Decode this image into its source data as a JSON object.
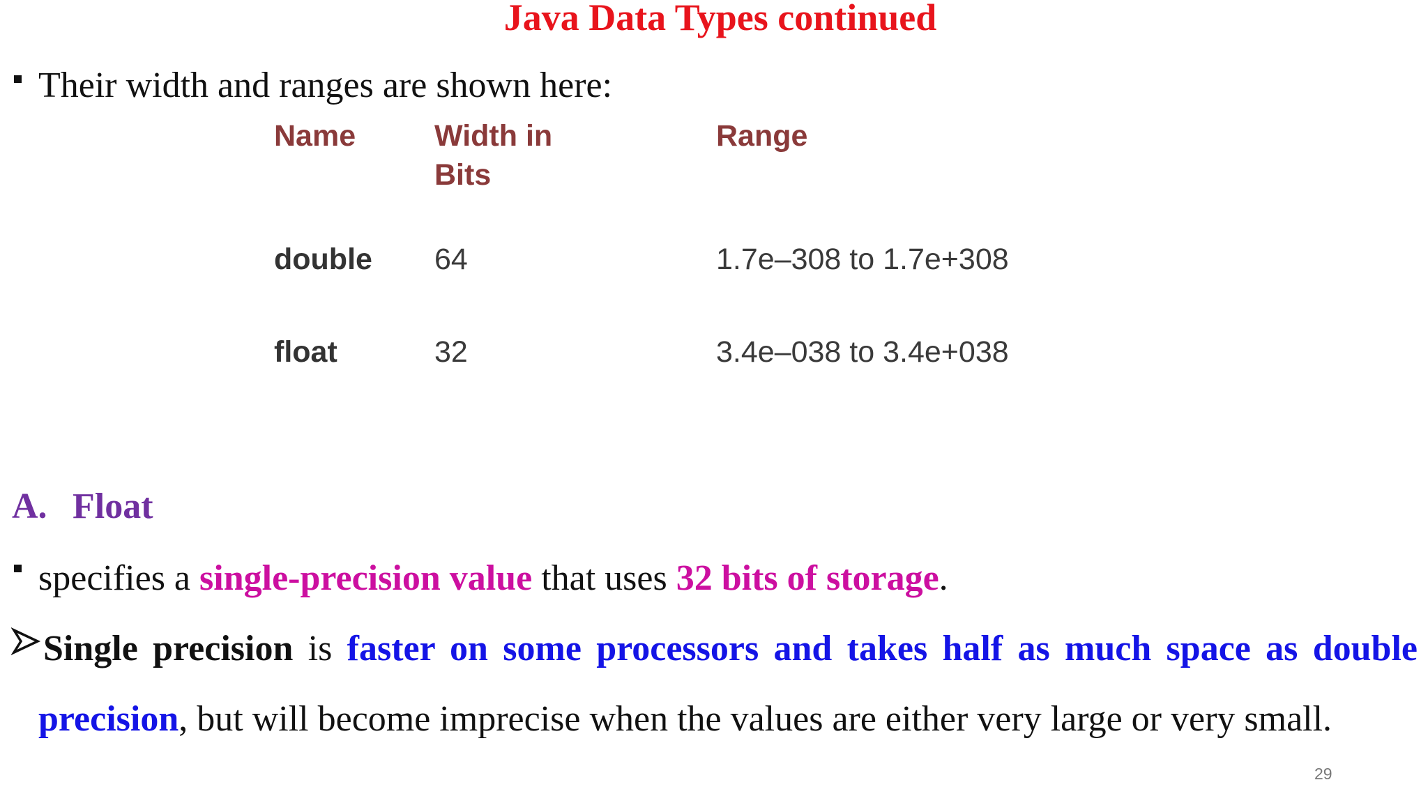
{
  "title": "Java Data Types continued",
  "intro": "Their width and ranges are shown here:",
  "table": {
    "headers": [
      "Name",
      "Width in Bits",
      "Range"
    ],
    "rows": [
      [
        "double",
        "64",
        "1.7e–308 to 1.7e+308"
      ],
      [
        "float",
        "32",
        "3.4e–038 to 3.4e+038"
      ]
    ]
  },
  "section": {
    "label": "A.",
    "title": "Float"
  },
  "bullet1": [
    "specifies a ",
    "single-precision value",
    " that uses ",
    "32 bits of storage",
    "."
  ],
  "bullet2": [
    "Single precision",
    " is ",
    "faster on some processors and takes half as much space as double precision",
    ", but will become imprecise when the values are either very large or very small."
  ],
  "page_number": "29"
}
